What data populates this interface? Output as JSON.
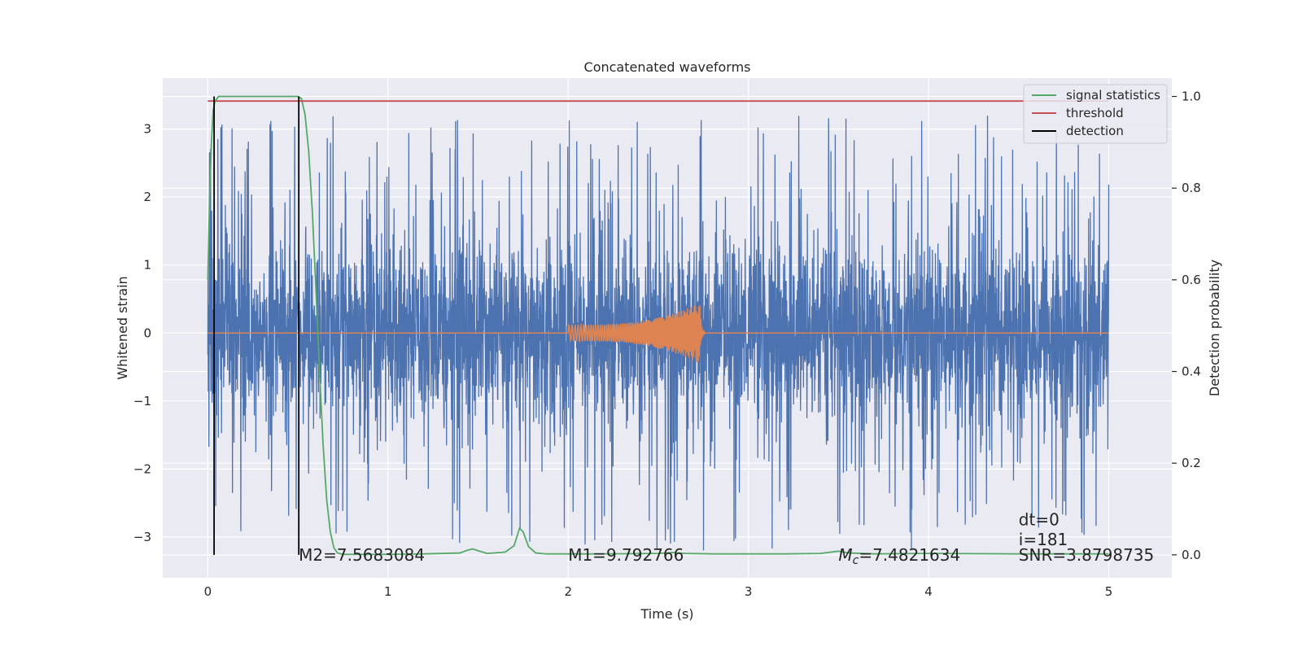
{
  "chart_data": {
    "type": "line",
    "title": "Concatenated waveforms",
    "xlabel": "Time (s)",
    "ylabel_left": "Whitened strain",
    "ylabel_right": "Detection probability",
    "xlim": [
      -0.25,
      5.35
    ],
    "ylim_left": [
      -3.6,
      3.75
    ],
    "ylim_right": [
      -0.05,
      1.04
    ],
    "grid": true,
    "legend_placement": "top-right",
    "xticks": [
      0,
      1,
      2,
      3,
      4,
      5
    ],
    "xtick_labels": [
      "0",
      "1",
      "2",
      "3",
      "4",
      "5"
    ],
    "yticks_left": [
      -3,
      -2,
      -1,
      0,
      1,
      2,
      3
    ],
    "ytick_labels_left": [
      "−3",
      "−2",
      "−1",
      "0",
      "1",
      "2",
      "3"
    ],
    "yticks_right": [
      0.0,
      0.2,
      0.4,
      0.6,
      0.8,
      1.0
    ],
    "ytick_labels_right": [
      "0.0",
      "0.2",
      "0.4",
      "0.6",
      "0.8",
      "1.0"
    ],
    "legend": [
      {
        "label": "signal statistics",
        "color": "#55a868"
      },
      {
        "label": "threshold",
        "color": "#c44e52"
      },
      {
        "label": "detection",
        "color": "#000000"
      }
    ],
    "series": [
      {
        "kind": "whitened-noise",
        "axis": "left",
        "color": "#4c72b0",
        "x_range": [
          0,
          5
        ],
        "typical_amplitude": 1.6,
        "peak_extremes": [
          -3.3,
          3.3
        ]
      },
      {
        "kind": "chirp-template",
        "axis": "left",
        "color": "#dd8452",
        "x_range": [
          0,
          5
        ],
        "chirp_start": 2.0,
        "merger_time": 2.73,
        "start_amplitude": 0.12,
        "peak_amplitude": 0.45
      },
      {
        "name": "signal statistics",
        "axis": "right",
        "color": "#55a868",
        "x": [
          0.0,
          0.01,
          0.02,
          0.03,
          0.04,
          0.06,
          0.1,
          0.2,
          0.3,
          0.4,
          0.5,
          0.52,
          0.54,
          0.56,
          0.58,
          0.6,
          0.62,
          0.64,
          0.66,
          0.68,
          0.7,
          0.72,
          0.75,
          0.8,
          1.0,
          1.2,
          1.4,
          1.44,
          1.47,
          1.5,
          1.55,
          1.65,
          1.7,
          1.73,
          1.75,
          1.78,
          1.82,
          1.88,
          2.0,
          2.2,
          2.5,
          2.58,
          2.65,
          2.8,
          3.0,
          3.2,
          3.4,
          3.5,
          3.56,
          3.7,
          4.0,
          4.5,
          5.0
        ],
        "y": [
          0.6,
          0.78,
          0.9,
          0.97,
          0.99,
          1.0,
          1.0,
          1.0,
          1.0,
          1.0,
          1.0,
          0.995,
          0.96,
          0.88,
          0.75,
          0.58,
          0.4,
          0.24,
          0.12,
          0.05,
          0.015,
          0.004,
          0.001,
          0.001,
          0.001,
          0.002,
          0.004,
          0.01,
          0.013,
          0.009,
          0.003,
          0.006,
          0.02,
          0.058,
          0.05,
          0.018,
          0.004,
          0.002,
          0.002,
          0.002,
          0.003,
          0.005,
          0.003,
          0.002,
          0.002,
          0.002,
          0.003,
          0.008,
          0.004,
          0.002,
          0.003,
          0.002,
          0.002
        ]
      },
      {
        "name": "threshold",
        "axis": "right",
        "color": "#c44e52",
        "x": [
          0,
          5
        ],
        "y": [
          0.99,
          0.99
        ]
      }
    ],
    "detections": {
      "color": "#000000",
      "x": [
        0.035,
        0.505
      ],
      "y_range": [
        0,
        1
      ]
    },
    "annotations": [
      {
        "text": "M2=7.5683084",
        "x": 0.505,
        "y": -3.35
      },
      {
        "text": "M1=9.792766",
        "x": 2.0,
        "y": -3.35
      },
      {
        "text": "=7.4821634",
        "symbol": "M",
        "subscript": "c",
        "x": 3.5,
        "y": -3.35
      },
      {
        "text": "dt=0",
        "x": 4.5,
        "y": -2.83
      },
      {
        "text": "i=181",
        "x": 4.5,
        "y": -3.12
      },
      {
        "text": "SNR=3.8798735",
        "x": 4.5,
        "y": -3.35
      }
    ]
  }
}
